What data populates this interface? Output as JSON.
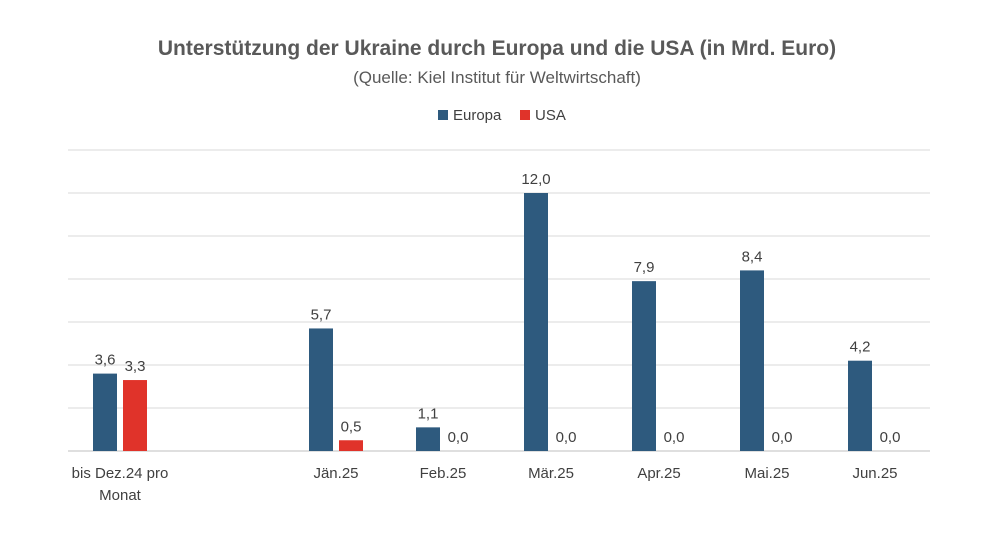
{
  "chart_data": {
    "type": "bar",
    "title": "Unterstützung der Ukraine durch Europa und die USA (in Mrd. Euro)",
    "subtitle": "(Quelle: Kiel Institut für Weltwirtschaft)",
    "categories": [
      "bis Dez.24 pro Monat",
      "Jän.25",
      "Feb.25",
      "Mär.25",
      "Apr.25",
      "Mai.25",
      "Jun.25"
    ],
    "category_lines": [
      [
        "bis Dez.24 pro",
        "Monat"
      ],
      [
        "Jän.25"
      ],
      [
        "Feb.25"
      ],
      [
        "Mär.25"
      ],
      [
        "Apr.25"
      ],
      [
        "Mai.25"
      ],
      [
        "Jun.25"
      ]
    ],
    "series": [
      {
        "name": "Europa",
        "color": "#2e5a7e",
        "values": [
          3.6,
          5.7,
          1.1,
          12.0,
          7.9,
          8.4,
          4.2
        ],
        "labels": [
          "3,6",
          "5,7",
          "1,1",
          "12,0",
          "7,9",
          "8,4",
          "4,2"
        ]
      },
      {
        "name": "USA",
        "color": "#e0332a",
        "values": [
          3.3,
          0.5,
          0.0,
          0.0,
          0.0,
          0.0,
          0.0
        ],
        "labels": [
          "3,3",
          "0,5",
          "0,0",
          "0,0",
          "0,0",
          "0,0",
          "0,0"
        ]
      }
    ],
    "ylim": [
      0,
      14
    ],
    "gridline_step": 2,
    "grid": true,
    "legend": "top-center",
    "xlabel": "",
    "ylabel": ""
  }
}
